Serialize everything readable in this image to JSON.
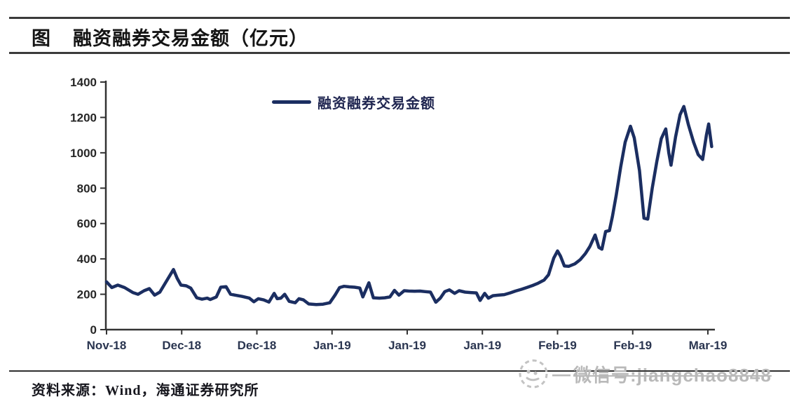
{
  "header": {
    "figure_label": "图",
    "title": "融资融券交易金额（亿元）"
  },
  "legend": {
    "label": "融资融券交易金额",
    "line_color": "#1b2e61"
  },
  "chart_data": {
    "type": "line",
    "title": "融资融券交易金额（亿元）",
    "series_name": "融资融券交易金额",
    "unit": "亿元",
    "x_tick_labels": [
      "Nov-18",
      "Dec-18",
      "Dec-18",
      "Jan-19",
      "Jan-19",
      "Jan-19",
      "Feb-19",
      "Feb-19",
      "Mar-19"
    ],
    "y_ticks": [
      0,
      200,
      400,
      600,
      800,
      1000,
      1200,
      1400
    ],
    "ylim": [
      0,
      1400
    ],
    "grid": false,
    "legend_position": "top-center",
    "line_color": "#1b2e61",
    "axis_color": "#333333",
    "y_label_color": "#262626",
    "x_label_color": "#2a3550",
    "points": [
      [
        0.0,
        270
      ],
      [
        0.07,
        238
      ],
      [
        0.15,
        252
      ],
      [
        0.24,
        238
      ],
      [
        0.35,
        210
      ],
      [
        0.42,
        200
      ],
      [
        0.5,
        220
      ],
      [
        0.57,
        232
      ],
      [
        0.64,
        195
      ],
      [
        0.71,
        212
      ],
      [
        0.82,
        290
      ],
      [
        0.89,
        340
      ],
      [
        0.94,
        290
      ],
      [
        0.99,
        252
      ],
      [
        1.06,
        248
      ],
      [
        1.12,
        235
      ],
      [
        1.2,
        180
      ],
      [
        1.27,
        172
      ],
      [
        1.34,
        178
      ],
      [
        1.38,
        170
      ],
      [
        1.46,
        185
      ],
      [
        1.52,
        240
      ],
      [
        1.59,
        243
      ],
      [
        1.65,
        200
      ],
      [
        1.71,
        195
      ],
      [
        1.8,
        188
      ],
      [
        1.9,
        178
      ],
      [
        1.96,
        158
      ],
      [
        2.02,
        175
      ],
      [
        2.09,
        168
      ],
      [
        2.16,
        156
      ],
      [
        2.23,
        205
      ],
      [
        2.27,
        175
      ],
      [
        2.32,
        178
      ],
      [
        2.37,
        200
      ],
      [
        2.43,
        160
      ],
      [
        2.51,
        152
      ],
      [
        2.56,
        175
      ],
      [
        2.62,
        168
      ],
      [
        2.69,
        145
      ],
      [
        2.79,
        142
      ],
      [
        2.88,
        144
      ],
      [
        2.97,
        152
      ],
      [
        3.04,
        195
      ],
      [
        3.1,
        238
      ],
      [
        3.16,
        245
      ],
      [
        3.23,
        242
      ],
      [
        3.3,
        240
      ],
      [
        3.37,
        235
      ],
      [
        3.41,
        185
      ],
      [
        3.49,
        265
      ],
      [
        3.55,
        180
      ],
      [
        3.63,
        178
      ],
      [
        3.7,
        180
      ],
      [
        3.77,
        185
      ],
      [
        3.83,
        222
      ],
      [
        3.89,
        195
      ],
      [
        3.96,
        220
      ],
      [
        4.02,
        218
      ],
      [
        4.1,
        217
      ],
      [
        4.17,
        218
      ],
      [
        4.24,
        215
      ],
      [
        4.31,
        212
      ],
      [
        4.38,
        155
      ],
      [
        4.44,
        178
      ],
      [
        4.5,
        215
      ],
      [
        4.56,
        225
      ],
      [
        4.63,
        205
      ],
      [
        4.69,
        220
      ],
      [
        4.77,
        212
      ],
      [
        4.84,
        210
      ],
      [
        4.92,
        208
      ],
      [
        4.97,
        165
      ],
      [
        5.03,
        205
      ],
      [
        5.08,
        178
      ],
      [
        5.14,
        192
      ],
      [
        5.22,
        195
      ],
      [
        5.29,
        198
      ],
      [
        5.37,
        208
      ],
      [
        5.44,
        218
      ],
      [
        5.52,
        228
      ],
      [
        5.59,
        238
      ],
      [
        5.67,
        250
      ],
      [
        5.74,
        262
      ],
      [
        5.82,
        280
      ],
      [
        5.88,
        310
      ],
      [
        5.95,
        405
      ],
      [
        6.0,
        445
      ],
      [
        6.04,
        415
      ],
      [
        6.09,
        360
      ],
      [
        6.15,
        358
      ],
      [
        6.23,
        372
      ],
      [
        6.3,
        395
      ],
      [
        6.37,
        430
      ],
      [
        6.43,
        470
      ],
      [
        6.5,
        535
      ],
      [
        6.55,
        465
      ],
      [
        6.59,
        455
      ],
      [
        6.64,
        555
      ],
      [
        6.69,
        560
      ],
      [
        6.73,
        640
      ],
      [
        6.78,
        760
      ],
      [
        6.84,
        920
      ],
      [
        6.9,
        1060
      ],
      [
        6.97,
        1150
      ],
      [
        7.02,
        1085
      ],
      [
        7.09,
        900
      ],
      [
        7.15,
        630
      ],
      [
        7.2,
        625
      ],
      [
        7.26,
        800
      ],
      [
        7.32,
        950
      ],
      [
        7.38,
        1080
      ],
      [
        7.44,
        1135
      ],
      [
        7.48,
        1000
      ],
      [
        7.51,
        930
      ],
      [
        7.57,
        1090
      ],
      [
        7.63,
        1215
      ],
      [
        7.68,
        1262
      ],
      [
        7.74,
        1160
      ],
      [
        7.81,
        1060
      ],
      [
        7.87,
        990
      ],
      [
        7.93,
        962
      ],
      [
        7.98,
        1100
      ],
      [
        8.01,
        1163
      ],
      [
        8.05,
        1035
      ]
    ]
  },
  "footer": {
    "source": "资料来源：Wind，海通证券研究所"
  },
  "watermark": {
    "icon": "wechat-face-icon",
    "text": "微信号:jiangchao8848"
  }
}
